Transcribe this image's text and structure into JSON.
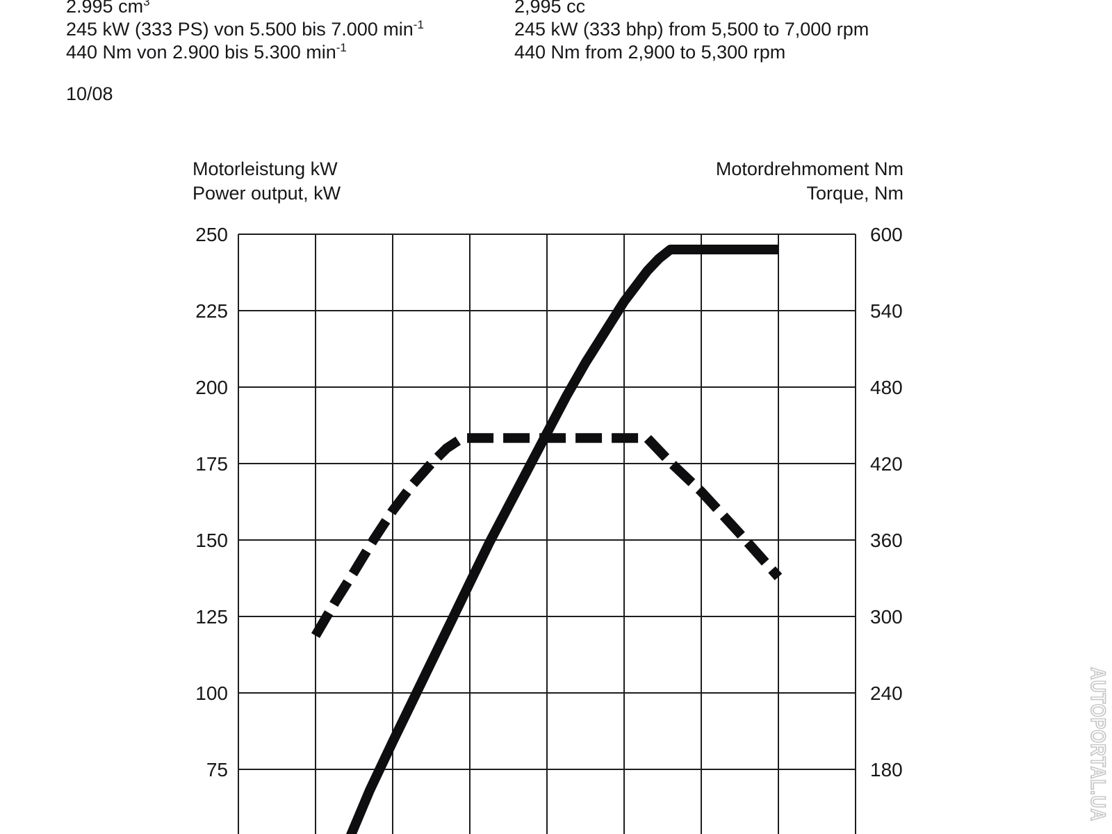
{
  "ink_color": "#17171a",
  "curve_color": "#0e0e10",
  "grid_color": "#1d1d1d",
  "watermark_color": "#c3c3c3",
  "specs": {
    "de": {
      "displacement": "2.995 cm",
      "displacement_sup": "3",
      "power": "245 kW (333 PS) von 5.500 bis 7.000 min",
      "power_sup": "-1",
      "torque": "440 Nm von 2.900 bis 5.300 min",
      "torque_sup": "-1"
    },
    "en": {
      "displacement": "2,995 cc",
      "power": "245 kW (333 bhp) from 5,500 to 7,000 rpm",
      "torque": "440 Nm from 2,900 to 5,300 rpm"
    },
    "date": "10/08"
  },
  "chart": {
    "left_title_line1": "Motorleistung kW",
    "left_title_line2": "Power output, kW",
    "right_title_line1": "Motordrehmoment Nm",
    "right_title_line2": "Torque, Nm"
  },
  "watermark": "AUTOPORTAL.UA",
  "chart_data": {
    "type": "line",
    "title": "",
    "x": {
      "unit": "rpm",
      "min": 0,
      "max": 8000,
      "gridline_step": 1000,
      "tick_labels_visible": false
    },
    "left_axis": {
      "label": "Motorleistung kW / Power output, kW",
      "ticks": [
        250,
        225,
        200,
        175,
        150,
        125,
        100,
        75
      ],
      "tick_step": 25
    },
    "right_axis": {
      "label": "Motordrehmoment Nm / Torque, Nm",
      "ticks": [
        600,
        540,
        480,
        420,
        360,
        300,
        240,
        180
      ],
      "tick_step": 60
    },
    "grid": true,
    "legend": "none",
    "series": [
      {
        "name": "Power output",
        "unit": "kW",
        "axis": "left",
        "line_style": "solid",
        "points": [
          [
            1400,
            50
          ],
          [
            1700,
            68
          ],
          [
            2000,
            84
          ],
          [
            2250,
            97
          ],
          [
            2500,
            110
          ],
          [
            2750,
            123
          ],
          [
            3000,
            136
          ],
          [
            3250,
            149
          ],
          [
            3500,
            161
          ],
          [
            3750,
            173
          ],
          [
            4000,
            185
          ],
          [
            4250,
            197
          ],
          [
            4500,
            208
          ],
          [
            4750,
            218
          ],
          [
            5000,
            228
          ],
          [
            5300,
            238
          ],
          [
            5450,
            242
          ],
          [
            5600,
            245
          ],
          [
            7000,
            245
          ]
        ]
      },
      {
        "name": "Torque",
        "unit": "Nm",
        "axis": "right",
        "line_style": "dashed",
        "points": [
          [
            1000,
            285
          ],
          [
            1250,
            311
          ],
          [
            1500,
            335
          ],
          [
            1750,
            360
          ],
          [
            2000,
            383
          ],
          [
            2250,
            403
          ],
          [
            2500,
            420
          ],
          [
            2700,
            432
          ],
          [
            2900,
            440
          ],
          [
            5300,
            440
          ],
          [
            5600,
            421
          ],
          [
            6000,
            398
          ],
          [
            6500,
            365
          ],
          [
            7000,
            331
          ]
        ]
      }
    ]
  }
}
